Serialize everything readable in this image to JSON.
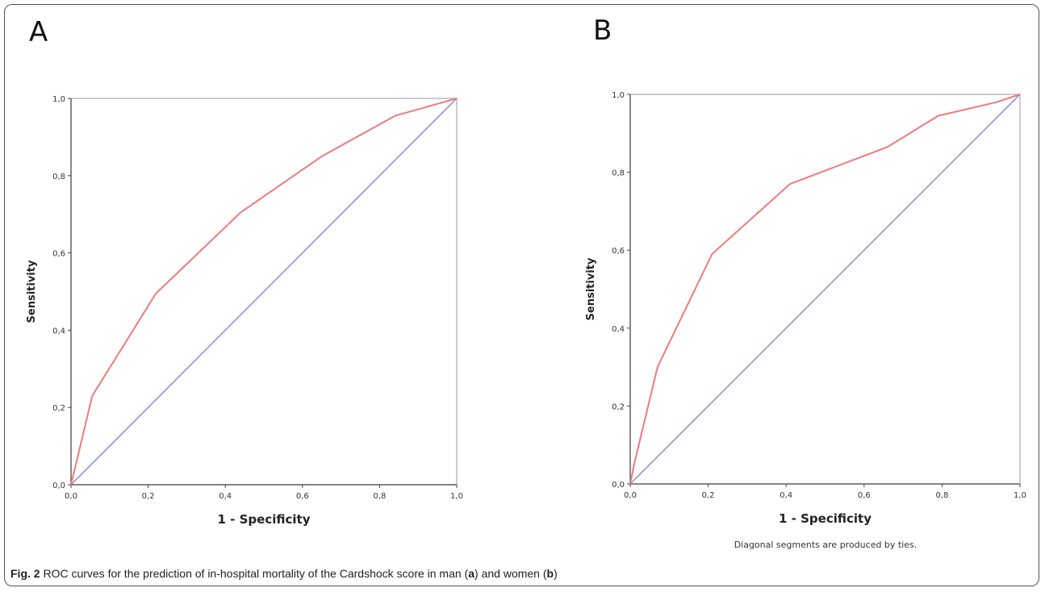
{
  "panels": [
    {
      "letter": "A"
    },
    {
      "letter": "B",
      "note": "Diagonal segments are produced by ties."
    }
  ],
  "caption": {
    "label": "Fig. 2",
    "text_1": " ROC curves for the prediction of in-hospital mortality of the Cardshock score in man (",
    "sub_a": "a",
    "text_2": ") and women (",
    "sub_b": "b",
    "text_3": ")"
  },
  "colors": {
    "roc": "#f07a7a",
    "reference": "#8a8cc8",
    "frame": "#aaaaaa"
  },
  "chart_data": [
    {
      "type": "line",
      "xlabel": "1 - Specificity",
      "ylabel": "Sensitivity",
      "xlim": [
        0,
        1
      ],
      "ylim": [
        0,
        1
      ],
      "x_ticks": [
        "0,0",
        "0,2",
        "0,4",
        "0,6",
        "0,8",
        "1,0"
      ],
      "y_ticks": [
        "0,0",
        "0,2",
        "0,4",
        "0,6",
        "0,8",
        "1,0"
      ],
      "series": [
        {
          "role": "roc",
          "points": [
            [
              0,
              0
            ],
            [
              0.055,
              0.23
            ],
            [
              0.22,
              0.495
            ],
            [
              0.44,
              0.705
            ],
            [
              0.65,
              0.85
            ],
            [
              0.84,
              0.955
            ],
            [
              1,
              1
            ]
          ]
        },
        {
          "role": "reference",
          "points": [
            [
              0,
              0
            ],
            [
              1,
              1
            ]
          ]
        }
      ]
    },
    {
      "type": "line",
      "xlabel": "1 - Specificity",
      "ylabel": "Sensitivity",
      "xlim": [
        0,
        1
      ],
      "ylim": [
        0,
        1
      ],
      "x_ticks": [
        "0,0",
        "0,2",
        "0,4",
        "0,6",
        "0,8",
        "1,0"
      ],
      "y_ticks": [
        "0,0",
        "0,2",
        "0,4",
        "0,6",
        "0,8",
        "1,0"
      ],
      "series": [
        {
          "role": "roc",
          "points": [
            [
              0,
              0
            ],
            [
              0.01,
              0.05
            ],
            [
              0.07,
              0.3
            ],
            [
              0.21,
              0.59
            ],
            [
              0.41,
              0.77
            ],
            [
              0.66,
              0.865
            ],
            [
              0.79,
              0.945
            ],
            [
              0.94,
              0.98
            ],
            [
              1,
              1
            ]
          ]
        },
        {
          "role": "reference",
          "points": [
            [
              0,
              0
            ],
            [
              1,
              1
            ]
          ]
        }
      ]
    }
  ]
}
